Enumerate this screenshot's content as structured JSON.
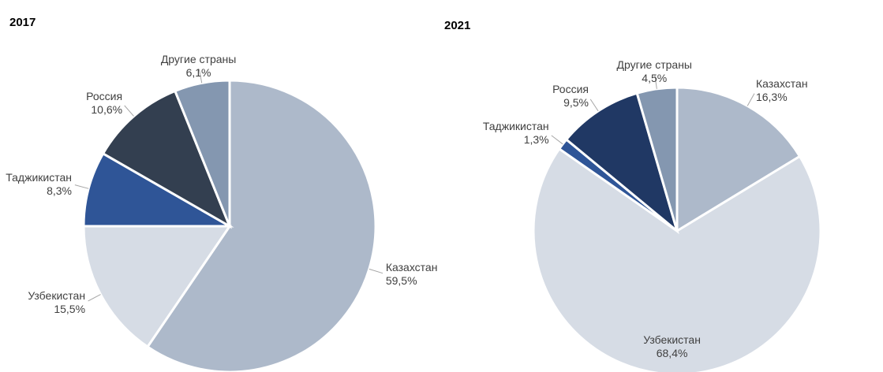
{
  "chart_data": [
    {
      "type": "pie",
      "title": "2017",
      "categories": [
        "Казахстан",
        "Узбекистан",
        "Таджикистан",
        "Россия",
        "Другие страны"
      ],
      "values": [
        59.5,
        15.5,
        8.3,
        10.6,
        6.1
      ],
      "value_labels": [
        "59,5%",
        "15,5%",
        "8,3%",
        "10,6%",
        "6,1%"
      ],
      "colors": [
        "#adb9ca",
        "#d6dce5",
        "#2f5597",
        "#333f50",
        "#8497b0"
      ]
    },
    {
      "type": "pie",
      "title": "2021",
      "categories": [
        "Казахстан",
        "Узбекистан",
        "Таджикистан",
        "Россия",
        "Другие страны"
      ],
      "values": [
        16.3,
        68.4,
        1.3,
        9.5,
        4.5
      ],
      "value_labels": [
        "16,3%",
        "68,4%",
        "1,3%",
        "9,5%",
        "4,5%"
      ],
      "colors": [
        "#adb9ca",
        "#d6dce5",
        "#2f5597",
        "#203864",
        "#8497b0"
      ]
    }
  ]
}
